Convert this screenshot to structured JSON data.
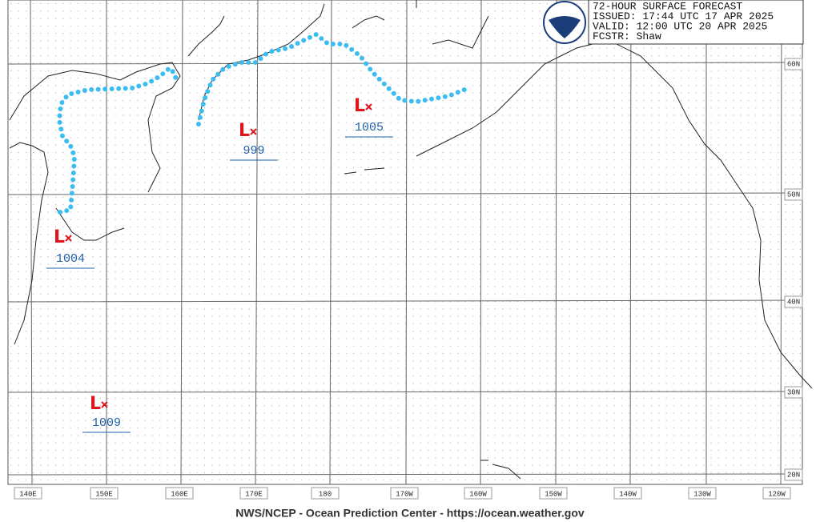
{
  "header": {
    "lines": [
      "72-HOUR SURFACE FORECAST",
      "ISSUED: 17:44 UTC 17 APR 2025",
      "VALID:  12:00 UTC 20 APR 2025",
      "FCSTR:  Shaw"
    ]
  },
  "low_symbol": "L",
  "lows": [
    {
      "pressure": "1004"
    },
    {
      "pressure": "999"
    },
    {
      "pressure": "1005"
    },
    {
      "pressure": "1009"
    }
  ],
  "longitude_labels": [
    "140E",
    "150E",
    "160E",
    "170E",
    "180",
    "170W",
    "160W",
    "150W",
    "140W",
    "130W",
    "120W"
  ],
  "latitude_labels": [
    "60N",
    "50N",
    "40N",
    "30N",
    "20N"
  ],
  "footer": "NWS/NCEP - Ocean Prediction Center - https://ocean.weather.gov"
}
